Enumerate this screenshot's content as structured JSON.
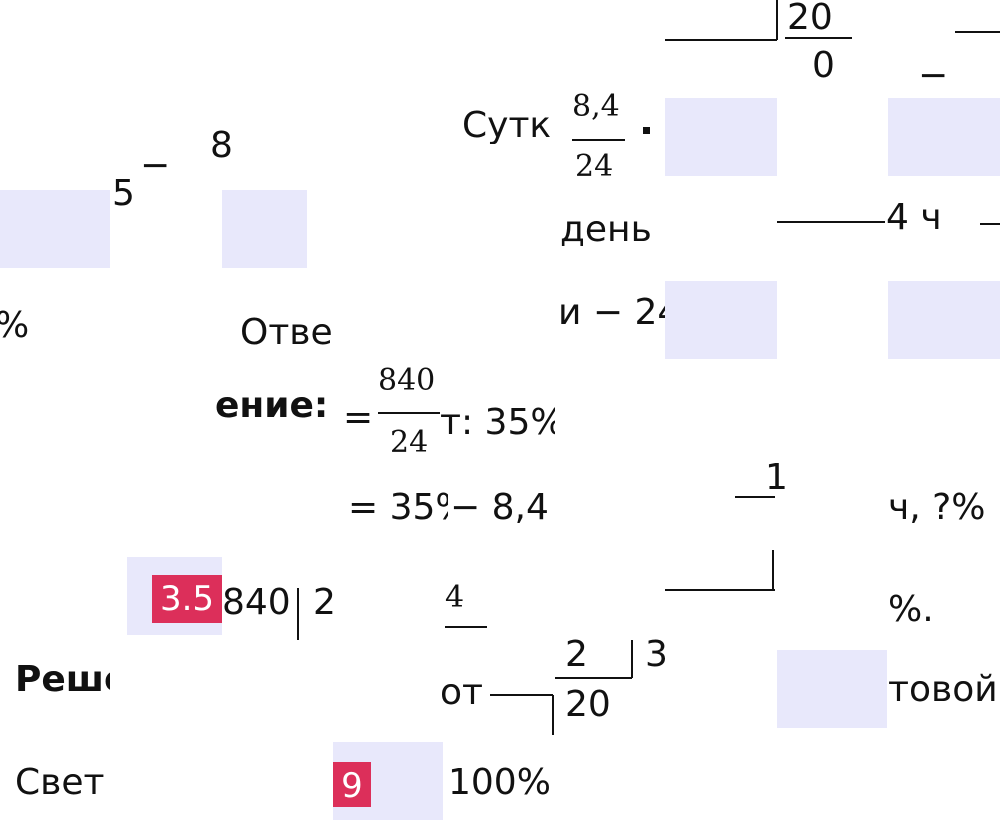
{
  "fragments": [
    {
      "text": "20"
    },
    {
      "text": "0"
    },
    {
      "text": "Сутк"
    },
    {
      "text": "8,4"
    },
    {
      "text": "24"
    },
    {
      "text": "день"
    },
    {
      "text": "4 ч"
    },
    {
      "text": "и − 24"
    },
    {
      "text": "Отве"
    },
    {
      "text": "%"
    },
    {
      "text": "5"
    },
    {
      "text": "−"
    },
    {
      "text": "8"
    },
    {
      "text": "ение:"
    },
    {
      "text": "="
    },
    {
      "text": "840"
    },
    {
      "text": "24"
    },
    {
      "text": "т: 35%"
    },
    {
      "text": "= 35%"
    },
    {
      "text": "− 8,4"
    },
    {
      "text": "1"
    },
    {
      "text": "ч, ?%"
    },
    {
      "text": "840"
    },
    {
      "text": "2"
    },
    {
      "text": "4"
    },
    {
      "text": "%."
    },
    {
      "text": "Реше"
    },
    {
      "text": "от"
    },
    {
      "text": "2"
    },
    {
      "text": "3"
    },
    {
      "text": "20"
    },
    {
      "text": "товой"
    },
    {
      "text": "Свет"
    },
    {
      "text": "100%"
    },
    {
      "text": "−"
    }
  ],
  "labels": [
    {
      "text": "3.5"
    },
    {
      "text": "9"
    }
  ]
}
